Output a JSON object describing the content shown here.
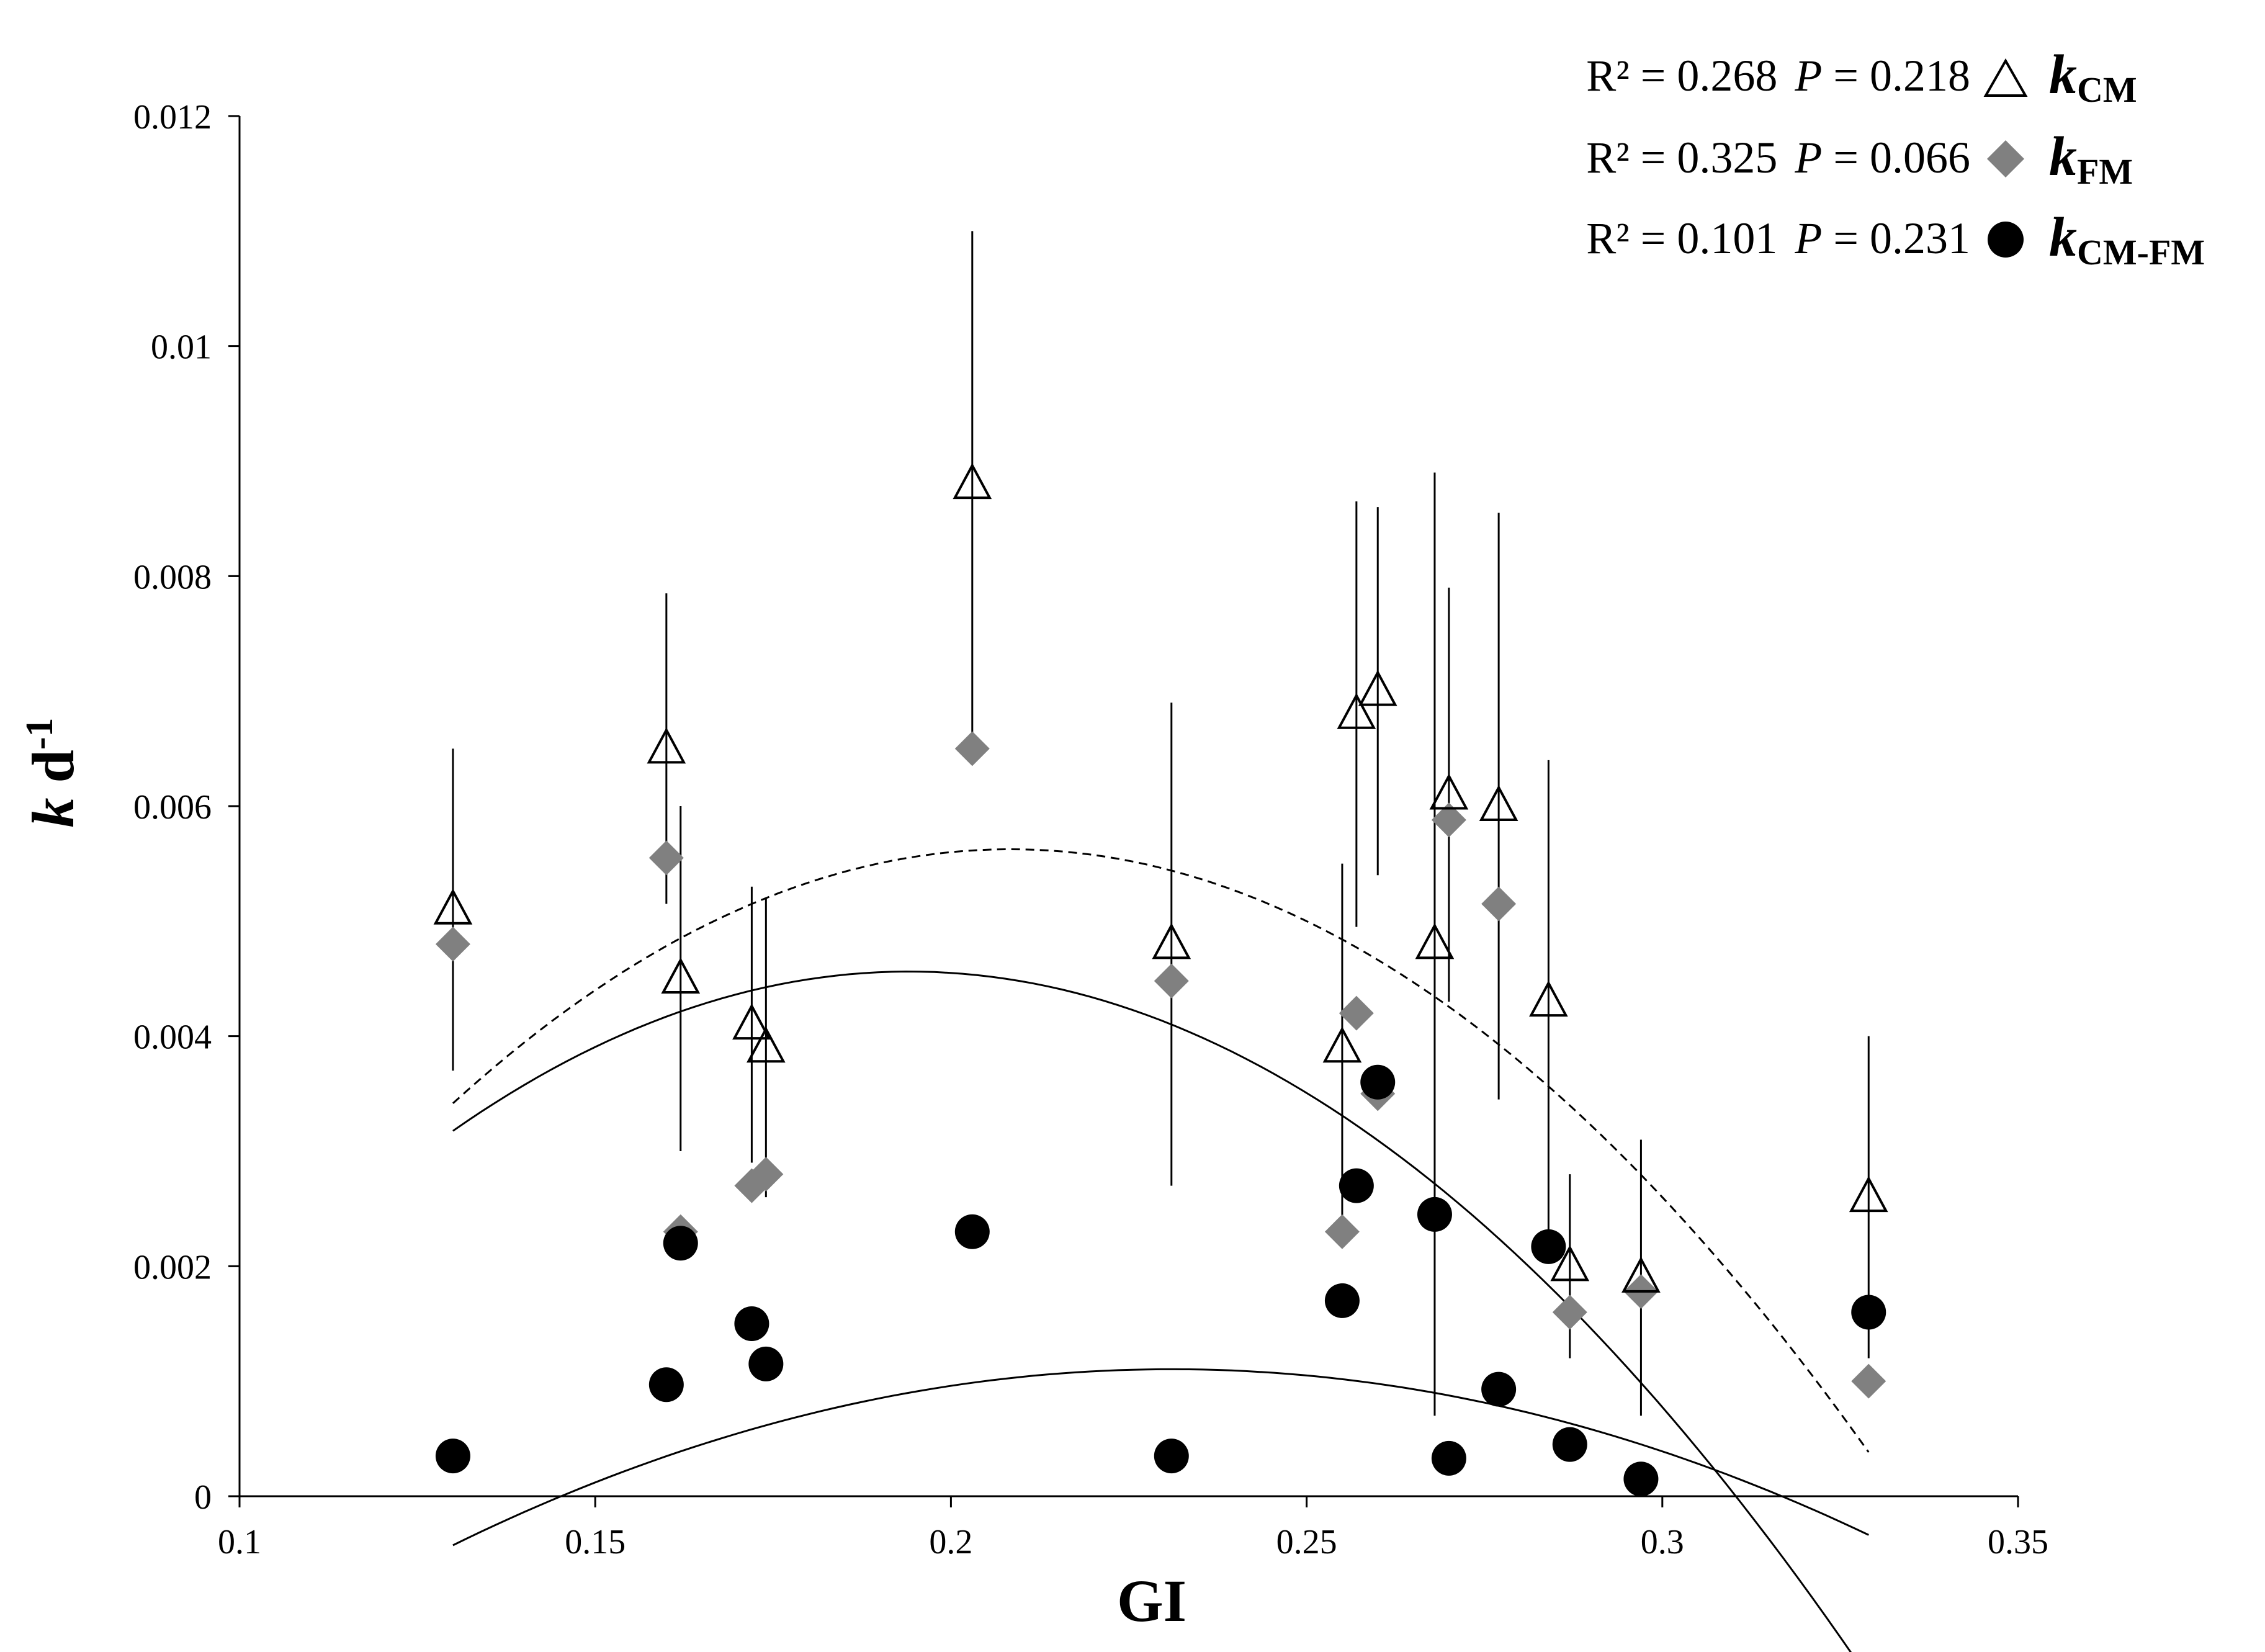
{
  "chart_data": {
    "type": "scatter",
    "xlabel": "GI",
    "ylabel": {
      "main": "k",
      "unit": " d",
      "exp": "-1"
    },
    "xlim": [
      0.1,
      0.35
    ],
    "ylim": [
      0,
      0.012
    ],
    "xticks": [
      0.1,
      0.15,
      0.2,
      0.25,
      0.3,
      0.35
    ],
    "yticks": [
      0,
      0.002,
      0.004,
      0.006,
      0.008,
      0.01,
      0.012
    ],
    "xtick_labels": [
      "0.1",
      "0.15",
      "0.2",
      "0.25",
      "0.3",
      "0.35"
    ],
    "ytick_labels": [
      "0",
      "0.002",
      "0.004",
      "0.006",
      "0.008",
      "0.01",
      "0.012"
    ],
    "grid": false,
    "legend_position": "top-right",
    "series": [
      {
        "name": "kCM",
        "name_main": "k",
        "name_sub": "CM",
        "marker": "open-triangle",
        "color": "#000000",
        "stats": {
          "r2": "R² = 0.268",
          "p_label": "P",
          "p_value": " = 0.218"
        },
        "points": [
          {
            "x": 0.13,
            "y": 0.0051,
            "err": 0.0014
          },
          {
            "x": 0.16,
            "y": 0.0065,
            "err": 0.00135
          },
          {
            "x": 0.162,
            "y": 0.0045,
            "err": 0.0015
          },
          {
            "x": 0.172,
            "y": 0.0041,
            "err": 0.0012
          },
          {
            "x": 0.174,
            "y": 0.0039,
            "err": 0.0013
          },
          {
            "x": 0.203,
            "y": 0.0088,
            "err": 0.0022
          },
          {
            "x": 0.231,
            "y": 0.0048,
            "err": 0.0021
          },
          {
            "x": 0.255,
            "y": 0.0039,
            "err": 0.0016
          },
          {
            "x": 0.257,
            "y": 0.0068,
            "err": 0.00185
          },
          {
            "x": 0.26,
            "y": 0.007,
            "err": 0.0016
          },
          {
            "x": 0.268,
            "y": 0.0048,
            "err": 0.0041
          },
          {
            "x": 0.27,
            "y": 0.0061,
            "err": 0.0018
          },
          {
            "x": 0.277,
            "y": 0.006,
            "err": 0.00255
          },
          {
            "x": 0.284,
            "y": 0.0043,
            "err": 0.0021
          },
          {
            "x": 0.287,
            "y": 0.002,
            "err": 0.0008
          },
          {
            "x": 0.297,
            "y": 0.0019,
            "err": 0.0012
          },
          {
            "x": 0.329,
            "y": 0.0026,
            "err": 0.0014
          }
        ],
        "fit": {
          "style": "dashed",
          "coef": [
            -0.01,
            0.15,
            -0.36
          ],
          "x_range": [
            0.13,
            0.329
          ]
        }
      },
      {
        "name": "kFM",
        "name_main": "k",
        "name_sub": "FM",
        "marker": "filled-diamond",
        "color": "#808080",
        "stats": {
          "r2": "R² = 0.325",
          "p_label": "P",
          "p_value": " = 0.066"
        },
        "points": [
          {
            "x": 0.13,
            "y": 0.0048
          },
          {
            "x": 0.16,
            "y": 0.00555
          },
          {
            "x": 0.162,
            "y": 0.0023
          },
          {
            "x": 0.172,
            "y": 0.0027
          },
          {
            "x": 0.174,
            "y": 0.0028
          },
          {
            "x": 0.203,
            "y": 0.0065
          },
          {
            "x": 0.231,
            "y": 0.00448
          },
          {
            "x": 0.255,
            "y": 0.0023
          },
          {
            "x": 0.257,
            "y": 0.0042
          },
          {
            "x": 0.26,
            "y": 0.0035
          },
          {
            "x": 0.27,
            "y": 0.00588
          },
          {
            "x": 0.277,
            "y": 0.00515
          },
          {
            "x": 0.287,
            "y": 0.0016
          },
          {
            "x": 0.297,
            "y": 0.00178
          },
          {
            "x": 0.329,
            "y": 0.001
          }
        ],
        "fit": {
          "style": "solid",
          "coef": [
            -0.00815,
            0.131,
            -0.3375
          ],
          "x_range": [
            0.13,
            0.329
          ]
        }
      },
      {
        "name": "kCM-FM",
        "name_main": "k",
        "name_sub": "CM-FM",
        "marker": "filled-circle",
        "color": "#000000",
        "stats": {
          "r2": "R² = 0.101",
          "p_label": "P",
          "p_value": " = 0.231"
        },
        "points": [
          {
            "x": 0.13,
            "y": 0.00035
          },
          {
            "x": 0.16,
            "y": 0.00097
          },
          {
            "x": 0.162,
            "y": 0.0022
          },
          {
            "x": 0.172,
            "y": 0.0015
          },
          {
            "x": 0.174,
            "y": 0.00115
          },
          {
            "x": 0.203,
            "y": 0.0023
          },
          {
            "x": 0.231,
            "y": 0.00035
          },
          {
            "x": 0.255,
            "y": 0.0017
          },
          {
            "x": 0.257,
            "y": 0.0027
          },
          {
            "x": 0.26,
            "y": 0.0036
          },
          {
            "x": 0.268,
            "y": 0.00245
          },
          {
            "x": 0.27,
            "y": 0.00033
          },
          {
            "x": 0.277,
            "y": 0.00093
          },
          {
            "x": 0.284,
            "y": 0.00217
          },
          {
            "x": 0.287,
            "y": 0.00045
          },
          {
            "x": 0.297,
            "y": 0.00015
          },
          {
            "x": 0.329,
            "y": 0.0016
          }
        ],
        "fit": {
          "style": "solid",
          "coef": [
            -0.0069,
            0.0693,
            -0.15
          ],
          "x_range": [
            0.13,
            0.329
          ]
        }
      }
    ]
  }
}
